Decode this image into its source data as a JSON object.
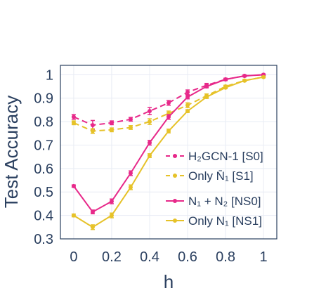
{
  "chart_data": {
    "type": "line",
    "xlabel": "h",
    "ylabel": "Test Accuracy",
    "xlim": [
      -0.07,
      1.07
    ],
    "ylim": [
      0.3,
      1.04
    ],
    "x_ticks": [
      "0",
      "0.2",
      "0.4",
      "0.6",
      "0.8",
      "1"
    ],
    "y_ticks": [
      "0.3",
      "0.4",
      "0.5",
      "0.6",
      "0.7",
      "0.8",
      "0.9",
      "1"
    ],
    "grid": true,
    "legend_position": "right-lower",
    "x": [
      0,
      0.1,
      0.2,
      0.3,
      0.4,
      0.5,
      0.6,
      0.7,
      0.8,
      0.9,
      1.0
    ],
    "series": [
      {
        "name": "H₂GCN-1 [S0]",
        "color": "#e7298a",
        "dash": true,
        "values": [
          0.82,
          0.785,
          0.795,
          0.81,
          0.845,
          0.88,
          0.925,
          0.955,
          0.98,
          0.995,
          1.0
        ],
        "errors": [
          0.01,
          0.02,
          0.008,
          0.008,
          0.015,
          0.01,
          0.01,
          0.008,
          0.005,
          0.004,
          0.003
        ]
      },
      {
        "name": "Only N̄₁ [S1]",
        "color": "#e6c229",
        "dash": true,
        "values": [
          0.795,
          0.76,
          0.765,
          0.775,
          0.8,
          0.835,
          0.87,
          0.91,
          0.95,
          0.975,
          0.99
        ],
        "errors": [
          0.008,
          0.01,
          0.008,
          0.008,
          0.012,
          0.01,
          0.01,
          0.008,
          0.005,
          0.004,
          0.003
        ]
      },
      {
        "name": "N₁ + N₂ [NS0]",
        "color": "#e7298a",
        "dash": false,
        "values": [
          0.525,
          0.415,
          0.46,
          0.58,
          0.71,
          0.82,
          0.905,
          0.95,
          0.98,
          0.995,
          1.0
        ],
        "errors": [
          0.005,
          0.008,
          0.01,
          0.01,
          0.01,
          0.01,
          0.008,
          0.006,
          0.004,
          0.003,
          0.002
        ]
      },
      {
        "name": "Only N₁ [NS1]",
        "color": "#e6c229",
        "dash": false,
        "values": [
          0.4,
          0.35,
          0.4,
          0.52,
          0.655,
          0.76,
          0.845,
          0.905,
          0.945,
          0.975,
          0.99
        ],
        "errors": [
          0.006,
          0.01,
          0.01,
          0.01,
          0.008,
          0.008,
          0.006,
          0.006,
          0.004,
          0.003,
          0.002
        ]
      }
    ]
  }
}
